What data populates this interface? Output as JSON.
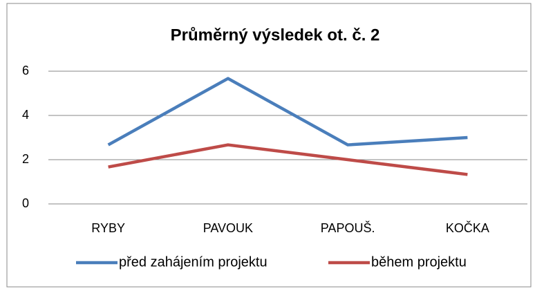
{
  "chart_data": {
    "type": "line",
    "title": "Průměrný výsledek ot. č. 2",
    "categories": [
      "RYBY",
      "PAVOUK",
      "PAPOUŠ.",
      "KOČKA"
    ],
    "series": [
      {
        "name": "před zahájením projektu",
        "color": "#4a7ebb",
        "values": [
          2.67,
          5.67,
          2.67,
          3.0
        ]
      },
      {
        "name": "během projektu",
        "color": "#be4b48",
        "values": [
          1.67,
          2.67,
          2.0,
          1.33
        ]
      }
    ],
    "ylim": [
      0,
      6
    ],
    "yticks": [
      0,
      2,
      4,
      6
    ],
    "grid": true,
    "legend": "bottom"
  }
}
